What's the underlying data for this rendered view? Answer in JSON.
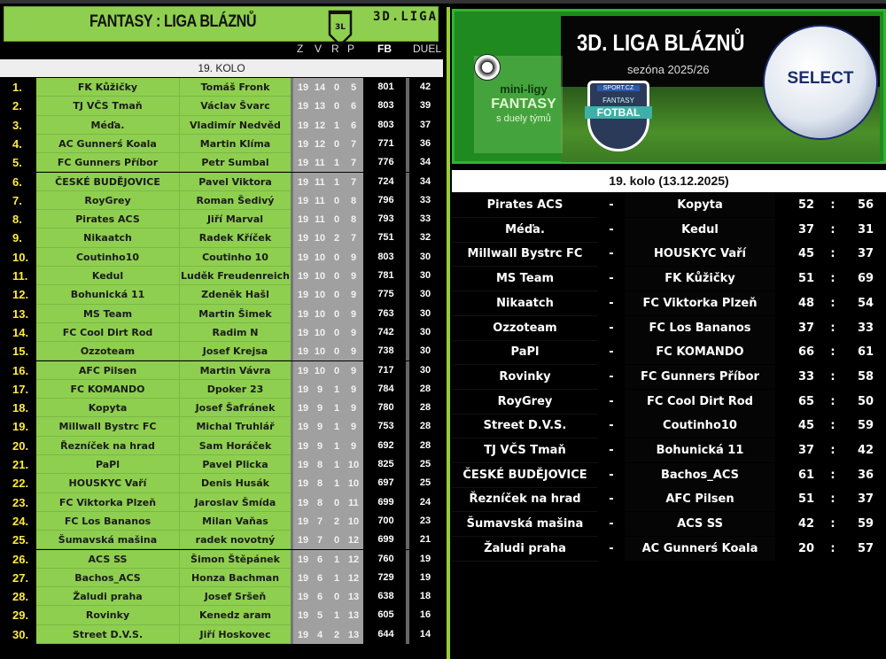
{
  "header": {
    "title": "FANTASY : LIGA BLÁZNŮ",
    "logo_text": "3L",
    "league": "3D.LIGA"
  },
  "columns": {
    "z": "Z",
    "v": "V",
    "r": "R",
    "p": "P",
    "fb": "FB",
    "duel": "DUEL"
  },
  "round_label": "19. KOLO",
  "standings": [
    {
      "rank": "1.",
      "team": "FK Kůžičky",
      "owner": "Tomáš Fronk",
      "z": 19,
      "v": 14,
      "r": 0,
      "p": 5,
      "fb": 801,
      "duel": 42
    },
    {
      "rank": "2.",
      "team": "TJ VČS Tmaň",
      "owner": "Václav Švarc",
      "z": 19,
      "v": 13,
      "r": 0,
      "p": 6,
      "fb": 803,
      "duel": 39
    },
    {
      "rank": "3.",
      "team": "Méďa.",
      "owner": "Vladimír Nedvěd",
      "z": 19,
      "v": 12,
      "r": 1,
      "p": 6,
      "fb": 803,
      "duel": 37
    },
    {
      "rank": "4.",
      "team": "AC Gunnerś Koala",
      "owner": "Martin Klíma",
      "z": 19,
      "v": 12,
      "r": 0,
      "p": 7,
      "fb": 771,
      "duel": 36
    },
    {
      "rank": "5.",
      "team": "FC Gunners Příbor",
      "owner": "Petr Sumbal",
      "z": 19,
      "v": 11,
      "r": 1,
      "p": 7,
      "fb": 776,
      "duel": 34
    },
    {
      "rank": "6.",
      "team": "ČESKÉ BUDĚJOVICE",
      "owner": "Pavel Viktora",
      "z": 19,
      "v": 11,
      "r": 1,
      "p": 7,
      "fb": 724,
      "duel": 34
    },
    {
      "rank": "7.",
      "team": "RoyGrey",
      "owner": "Roman Šedivý",
      "z": 19,
      "v": 11,
      "r": 0,
      "p": 8,
      "fb": 796,
      "duel": 33
    },
    {
      "rank": "8.",
      "team": "Pirates ACS",
      "owner": "Jiří Marval",
      "z": 19,
      "v": 11,
      "r": 0,
      "p": 8,
      "fb": 793,
      "duel": 33
    },
    {
      "rank": "9.",
      "team": "Nikaatch",
      "owner": "Radek Kříček",
      "z": 19,
      "v": 10,
      "r": 2,
      "p": 7,
      "fb": 751,
      "duel": 32
    },
    {
      "rank": "10.",
      "team": "Coutinho10",
      "owner": "Coutinho 10",
      "z": 19,
      "v": 10,
      "r": 0,
      "p": 9,
      "fb": 803,
      "duel": 30
    },
    {
      "rank": "11.",
      "team": "Kedul",
      "owner": "Luděk Freudenreich",
      "z": 19,
      "v": 10,
      "r": 0,
      "p": 9,
      "fb": 781,
      "duel": 30
    },
    {
      "rank": "12.",
      "team": "Bohunická 11",
      "owner": "Zdeněk Hašl",
      "z": 19,
      "v": 10,
      "r": 0,
      "p": 9,
      "fb": 775,
      "duel": 30
    },
    {
      "rank": "13.",
      "team": "MS Team",
      "owner": "Martin Šimek",
      "z": 19,
      "v": 10,
      "r": 0,
      "p": 9,
      "fb": 763,
      "duel": 30
    },
    {
      "rank": "14.",
      "team": "FC Cool Dirt Rod",
      "owner": "Radim N",
      "z": 19,
      "v": 10,
      "r": 0,
      "p": 9,
      "fb": 742,
      "duel": 30
    },
    {
      "rank": "15.",
      "team": "Ozzoteam",
      "owner": "Josef Krejsa",
      "z": 19,
      "v": 10,
      "r": 0,
      "p": 9,
      "fb": 738,
      "duel": 30
    },
    {
      "rank": "16.",
      "team": "AFC Pilsen",
      "owner": "Martin Vávra",
      "z": 19,
      "v": 10,
      "r": 0,
      "p": 9,
      "fb": 717,
      "duel": 30
    },
    {
      "rank": "17.",
      "team": "FC KOMANDO",
      "owner": "Dpoker 23",
      "z": 19,
      "v": 9,
      "r": 1,
      "p": 9,
      "fb": 784,
      "duel": 28
    },
    {
      "rank": "18.",
      "team": "Kopyta",
      "owner": "Josef Šafránek",
      "z": 19,
      "v": 9,
      "r": 1,
      "p": 9,
      "fb": 780,
      "duel": 28
    },
    {
      "rank": "19.",
      "team": "Millwall Bystrc FC",
      "owner": "Michal Truhlář",
      "z": 19,
      "v": 9,
      "r": 1,
      "p": 9,
      "fb": 753,
      "duel": 28
    },
    {
      "rank": "20.",
      "team": "Řezníček na hrad",
      "owner": "Sam Horáček",
      "z": 19,
      "v": 9,
      "r": 1,
      "p": 9,
      "fb": 692,
      "duel": 28
    },
    {
      "rank": "21.",
      "team": "PaPl",
      "owner": "Pavel Plicka",
      "z": 19,
      "v": 8,
      "r": 1,
      "p": 10,
      "fb": 825,
      "duel": 25
    },
    {
      "rank": "22.",
      "team": "HOUSKYC Vaří",
      "owner": "Denis Husák",
      "z": 19,
      "v": 8,
      "r": 1,
      "p": 10,
      "fb": 697,
      "duel": 25
    },
    {
      "rank": "23.",
      "team": "FC Viktorka Plzeň",
      "owner": "Jaroslav Šmída",
      "z": 19,
      "v": 8,
      "r": 0,
      "p": 11,
      "fb": 699,
      "duel": 24
    },
    {
      "rank": "24.",
      "team": "FC Los Bananos",
      "owner": "Milan Vaňas",
      "z": 19,
      "v": 7,
      "r": 2,
      "p": 10,
      "fb": 700,
      "duel": 23
    },
    {
      "rank": "25.",
      "team": "Šumavská mašina",
      "owner": "radek novotný",
      "z": 19,
      "v": 7,
      "r": 0,
      "p": 12,
      "fb": 699,
      "duel": 21
    },
    {
      "rank": "26.",
      "team": "ACS SS",
      "owner": "Šimon Štěpánek",
      "z": 19,
      "v": 6,
      "r": 1,
      "p": 12,
      "fb": 760,
      "duel": 19
    },
    {
      "rank": "27.",
      "team": "Bachos_ACS",
      "owner": "Honza Bachman",
      "z": 19,
      "v": 6,
      "r": 1,
      "p": 12,
      "fb": 729,
      "duel": 19
    },
    {
      "rank": "28.",
      "team": "Žaludi praha",
      "owner": "Josef Sršeň",
      "z": 19,
      "v": 6,
      "r": 0,
      "p": 13,
      "fb": 638,
      "duel": 18
    },
    {
      "rank": "29.",
      "team": "Rovinky",
      "owner": "Kenedz aram",
      "z": 19,
      "v": 5,
      "r": 1,
      "p": 13,
      "fb": 605,
      "duel": 16
    },
    {
      "rank": "30.",
      "team": "Street D.V.S.",
      "owner": "Jiří Hoskovec",
      "z": 19,
      "v": 4,
      "r": 2,
      "p": 13,
      "fb": 644,
      "duel": 14
    }
  ],
  "banner": {
    "title": "3D. LIGA BLÁZNŮ",
    "season": "sezóna 2025/26",
    "mini": "mini-ligy",
    "fantasy": "FANTASY",
    "duels": "s duely týmů",
    "badge_top": "SPORT.CZ",
    "badge_mid": "FANTASY",
    "badge_main": "FOTBAL",
    "ball_brand": "SELECT"
  },
  "matches_title": "19. kolo (13.12.2025)",
  "matches": [
    {
      "home": "Pirates ACS",
      "away": "Kopyta",
      "hs": 52,
      "as": 56
    },
    {
      "home": "Méďa.",
      "away": "Kedul",
      "hs": 37,
      "as": 31
    },
    {
      "home": "Millwall Bystrc FC",
      "away": "HOUSKYC Vaří",
      "hs": 45,
      "as": 37
    },
    {
      "home": "MS Team",
      "away": "FK Kůžičky",
      "hs": 51,
      "as": 69
    },
    {
      "home": "Nikaatch",
      "away": "FC Viktorka Plzeň",
      "hs": 48,
      "as": 54
    },
    {
      "home": "Ozzoteam",
      "away": "FC Los Bananos",
      "hs": 37,
      "as": 33
    },
    {
      "home": "PaPl",
      "away": "FC KOMANDO",
      "hs": 66,
      "as": 61
    },
    {
      "home": "Rovinky",
      "away": "FC Gunners Příbor",
      "hs": 33,
      "as": 58
    },
    {
      "home": "RoyGrey",
      "away": "FC Cool Dirt Rod",
      "hs": 65,
      "as": 50
    },
    {
      "home": "Street D.V.S.",
      "away": "Coutinho10",
      "hs": 45,
      "as": 59
    },
    {
      "home": "TJ VČS Tmaň",
      "away": "Bohunická 11",
      "hs": 37,
      "as": 42
    },
    {
      "home": "ČESKÉ BUDĚJOVICE",
      "away": "Bachos_ACS",
      "hs": 61,
      "as": 36
    },
    {
      "home": "Řezníček na hrad",
      "away": "AFC Pilsen",
      "hs": 51,
      "as": 37
    },
    {
      "home": "Šumavská mašina",
      "away": "ACS SS",
      "hs": 42,
      "as": 59
    },
    {
      "home": "Žaludi praha",
      "away": "AC Gunnerś Koala",
      "hs": 20,
      "as": 57
    }
  ],
  "separators": {
    "dash": "-",
    "colon": ":"
  },
  "colors": {
    "green": "#8fcf4f",
    "rank_yellow": "#ffeb3b",
    "stats_gray": "#a0a0a0",
    "accent_line": "#9acd32"
  }
}
